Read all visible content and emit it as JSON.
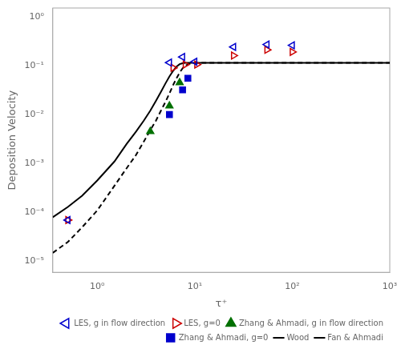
{
  "chart_data": {
    "type": "scatter",
    "xlabel": "τ⁺",
    "ylabel": "Deposition Velocity",
    "log": true,
    "grid": false,
    "legend": "lower right",
    "xlim": [
      0.35,
      1000
    ],
    "ylim": [
      6e-06,
      1.5
    ],
    "xticks": [
      {
        "value": 1,
        "label": "10⁰"
      },
      {
        "value": 10,
        "label": "10¹"
      },
      {
        "value": 100,
        "label": "10²"
      },
      {
        "value": 1000,
        "label": "10³"
      }
    ],
    "yticks": [
      {
        "value": 1e-05,
        "label": "10⁻⁵"
      },
      {
        "value": 0.0001,
        "label": "10⁻⁴"
      },
      {
        "value": 0.001,
        "label": "10⁻³"
      },
      {
        "value": 0.01,
        "label": "10⁻²"
      },
      {
        "value": 0.1,
        "label": "10⁻¹"
      },
      {
        "value": 1,
        "label": "10⁰"
      }
    ],
    "series": [
      {
        "name": "LES, g in flow direction",
        "type": "scatter",
        "marker": "open-triangle-left",
        "color": "#0000CD",
        "x": [
          0.5,
          5.5,
          7.5,
          10.0,
          25.0,
          55.0,
          100.0
        ],
        "values": [
          7e-05,
          0.115,
          0.15,
          0.12,
          0.24,
          0.27,
          0.26
        ]
      },
      {
        "name": "LES, g=0",
        "type": "scatter",
        "marker": "open-triangle-right",
        "color": "#CC0000",
        "x": [
          0.5,
          6.0,
          8.0,
          10.5,
          25.0,
          55.0,
          100.0
        ],
        "values": [
          7e-05,
          0.09,
          0.105,
          0.105,
          0.16,
          0.21,
          0.19
        ]
      },
      {
        "name": "Wood",
        "type": "line",
        "line_style": "dashed",
        "color": "#000000",
        "x": [
          0.35,
          0.5,
          0.7,
          1.0,
          1.5,
          2.0,
          2.5,
          3.0,
          3.5,
          4.0,
          4.5,
          5.0,
          5.5,
          6.0,
          6.5,
          7.0,
          7.5,
          8.0,
          9.0,
          10.0,
          12.0,
          15.0,
          20.0,
          50.0,
          100.0,
          500.0,
          1000.0
        ],
        "values": [
          1.5e-05,
          2.5e-05,
          5e-05,
          0.00011,
          0.00035,
          0.0008,
          0.0015,
          0.0028,
          0.0048,
          0.0075,
          0.012,
          0.018,
          0.027,
          0.04,
          0.055,
          0.072,
          0.088,
          0.1,
          0.11,
          0.113,
          0.114,
          0.114,
          0.114,
          0.114,
          0.114,
          0.114,
          0.114
        ]
      },
      {
        "name": "Fan & Ahmadi",
        "type": "line",
        "line_style": "solid",
        "color": "#000000",
        "x": [
          0.35,
          0.5,
          0.7,
          1.0,
          1.5,
          2.0,
          2.5,
          3.0,
          3.5,
          4.0,
          4.5,
          5.0,
          5.5,
          6.0,
          6.5,
          7.0,
          7.5,
          8.0,
          8.5,
          9.0,
          10.0,
          15.0,
          20.0,
          50.0,
          100.0,
          500.0,
          1000.0
        ],
        "values": [
          8e-05,
          0.00013,
          0.00022,
          0.00045,
          0.0011,
          0.0025,
          0.0045,
          0.0075,
          0.012,
          0.019,
          0.029,
          0.043,
          0.06,
          0.078,
          0.095,
          0.107,
          0.112,
          0.114,
          0.114,
          0.114,
          0.114,
          0.114,
          0.114,
          0.114,
          0.114,
          0.114,
          0.114
        ]
      },
      {
        "name": "Zhang & Ahmadi, g in flow direction",
        "type": "scatter",
        "marker": "triangle-up",
        "color": "#007000",
        "x": [
          3.5,
          5.5,
          7.0
        ],
        "values": [
          0.0045,
          0.015,
          0.045
        ]
      },
      {
        "name": "Zhang & Ahmadi, g=0",
        "type": "scatter",
        "marker": "square",
        "color": "#0000CD",
        "x": [
          5.5,
          7.5,
          8.5
        ],
        "values": [
          0.01,
          0.032,
          0.055
        ]
      }
    ]
  }
}
